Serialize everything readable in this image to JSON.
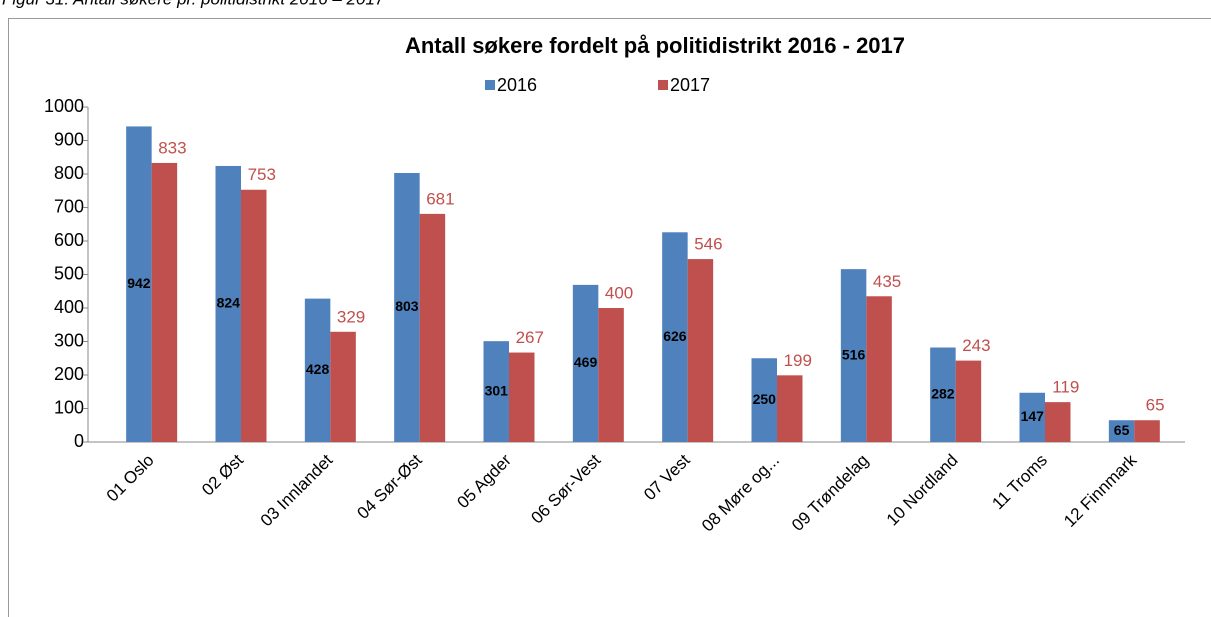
{
  "caption": "Figur 31: Antall søkere pr. politidistrikt 2016 – 2017",
  "chart_data": {
    "type": "bar",
    "title": "Antall søkere fordelt på politidistrikt 2016 - 2017",
    "categories": [
      "01 Oslo",
      "02 Øst",
      "03 Innlandet",
      "04 Sør-Øst",
      "05 Agder",
      "06 Sør-Vest",
      "07 Vest",
      "08 Møre og...",
      "09 Trøndelag",
      "10 Nordland",
      "11 Troms",
      "12 Finnmark"
    ],
    "series": [
      {
        "name": "2016",
        "color": "#4f81bd",
        "values": [
          942,
          824,
          428,
          803,
          301,
          469,
          626,
          250,
          516,
          282,
          147,
          65
        ]
      },
      {
        "name": "2017",
        "color": "#c0504d",
        "values": [
          833,
          753,
          329,
          681,
          267,
          400,
          546,
          199,
          435,
          243,
          119,
          65
        ]
      }
    ],
    "ylim": [
      0,
      1000
    ],
    "yticks": [
      0,
      100,
      200,
      300,
      400,
      500,
      600,
      700,
      800,
      900,
      1000
    ],
    "legend": "top",
    "grid": false
  }
}
